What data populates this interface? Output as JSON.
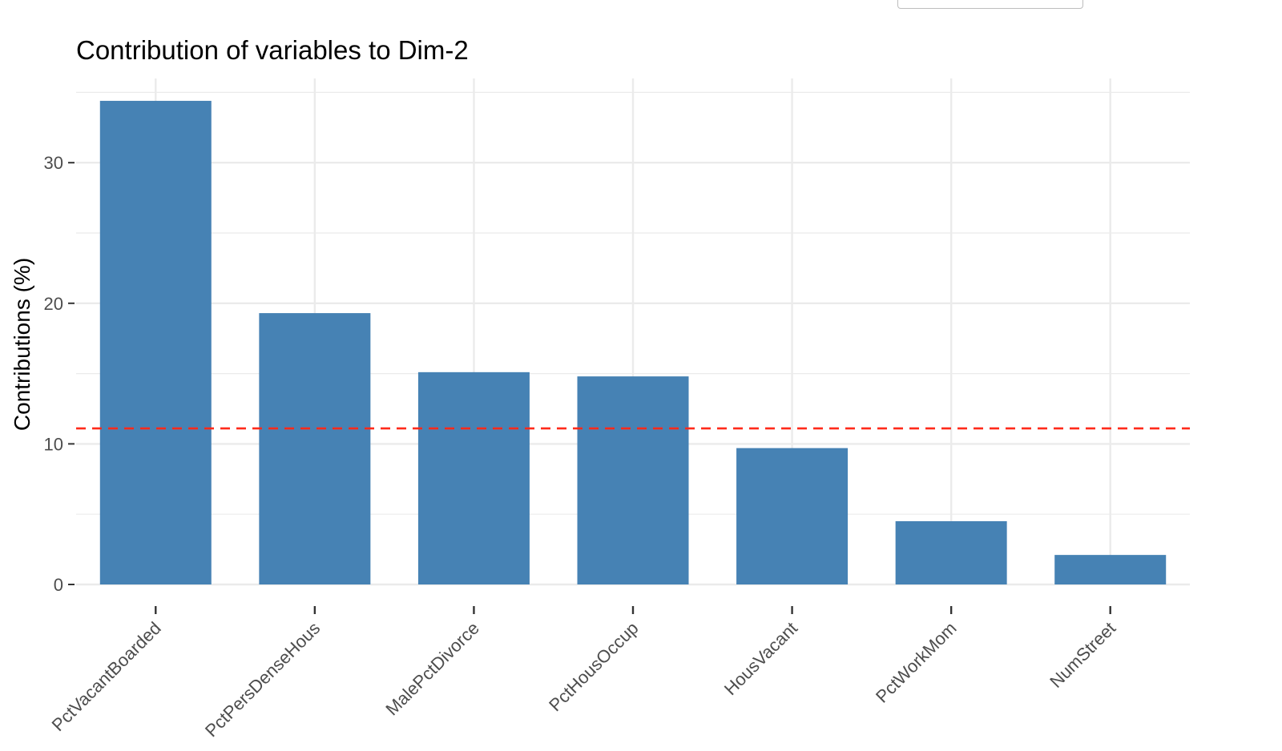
{
  "chart_data": {
    "type": "bar",
    "title": "Contribution of variables to Dim-2",
    "xlabel": "",
    "ylabel": "Contributions (%)",
    "categories": [
      "PctVacantBoarded",
      "PctPersDenseHous",
      "MalePctDivorce",
      "PctHousOccup",
      "HousVacant",
      "PctWorkMom",
      "NumStreet"
    ],
    "values": [
      34.4,
      19.3,
      15.1,
      14.8,
      9.7,
      4.5,
      2.1
    ],
    "ylim": [
      0,
      35
    ],
    "yticks": [
      0,
      10,
      20,
      30
    ],
    "reference_line": {
      "value": 11.1,
      "style": "dashed",
      "color": "#ff2a1a"
    },
    "bar_color": "#4682b4",
    "grid": true
  }
}
